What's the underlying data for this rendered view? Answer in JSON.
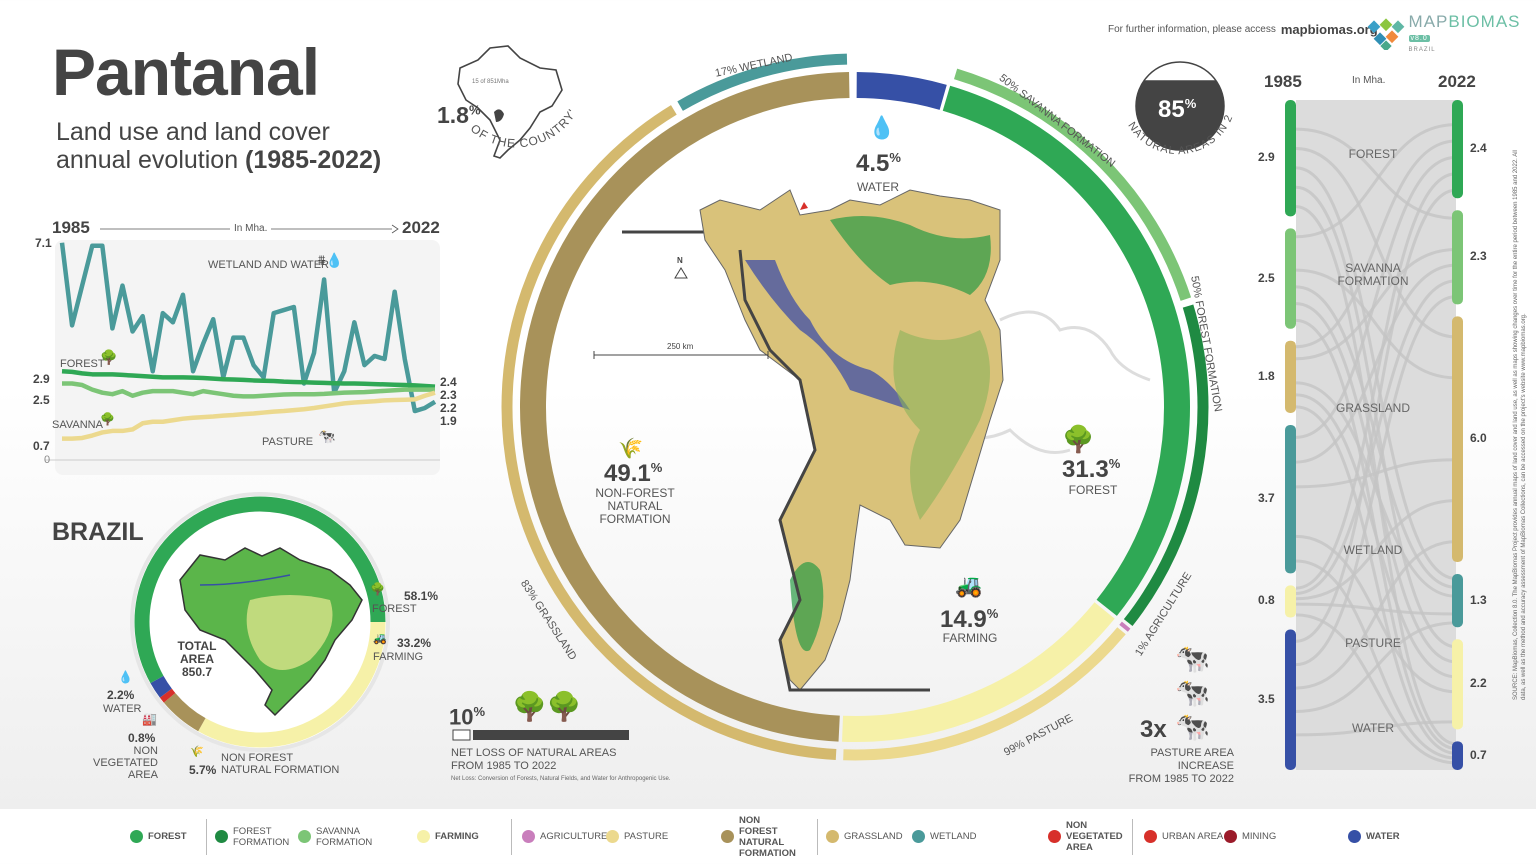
{
  "header": {
    "title": "Pantanal",
    "subtitle_line1": "Land use and land cover",
    "subtitle_line2": "annual evolution",
    "subtitle_years": "(1985-2022)",
    "info_text": "For further information, please access",
    "info_link": "mapbiomas.org",
    "logo_text_a": "MAP",
    "logo_text_b": "BIOMAS",
    "logo_country": "BRAZIL",
    "logo_version": "v8.0"
  },
  "country_share": {
    "value": "1.8",
    "unit": "%",
    "caption": "OF THE COUNTRY'S AREA",
    "map_note": "15 of 851Mha"
  },
  "natural_areas": {
    "value": "85",
    "unit": "%",
    "caption": "NATURAL AREAS IN 2022",
    "fill_fraction": 0.85
  },
  "line_chart": {
    "start_year": "1985",
    "end_year": "2022",
    "unit": "In Mha.",
    "labels": {
      "wetland": "WETLAND AND WATER",
      "forest": "FOREST",
      "savanna": "SAVANNA",
      "pasture": "PASTURE"
    },
    "start_values": {
      "wetland": "7.1",
      "forest": "2.9",
      "savanna": "2.5",
      "pasture": "0.7",
      "zero": "0"
    },
    "end_values": {
      "forest": "2.4",
      "savanna": "2.3",
      "pasture": "2.2",
      "wetland": "1.9"
    }
  },
  "chart_data": [
    {
      "type": "line",
      "xlabel": "",
      "ylabel": "In Mha.",
      "x_range": [
        1985,
        2022
      ],
      "ylim": [
        0,
        7.1
      ],
      "series": [
        {
          "name": "WETLAND AND WATER",
          "color": "#4a9a9a",
          "values": [
            7.1,
            4.4,
            5.7,
            7.0,
            7.0,
            4.3,
            5.7,
            4.2,
            4.7,
            2.9,
            4.8,
            4.5,
            5.4,
            2.9,
            3.8,
            4.6,
            2.7,
            4.0,
            4.0,
            3.1,
            2.7,
            4.8,
            4.9,
            5.0,
            2.5,
            3.5,
            5.9,
            2.2,
            2.9,
            4.5,
            3.1,
            3.4,
            3.3,
            5.5,
            3.3,
            1.6,
            1.7,
            1.9
          ]
        },
        {
          "name": "FOREST",
          "color": "#2fa855",
          "values": [
            2.9,
            2.88,
            2.83,
            2.8,
            2.8,
            2.8,
            2.78,
            2.76,
            2.74,
            2.72,
            2.7,
            2.7,
            2.7,
            2.69,
            2.68,
            2.66,
            2.64,
            2.63,
            2.62,
            2.6,
            2.59,
            2.58,
            2.56,
            2.55,
            2.54,
            2.53,
            2.52,
            2.51,
            2.5,
            2.5,
            2.49,
            2.48,
            2.47,
            2.46,
            2.45,
            2.44,
            2.42,
            2.4
          ]
        },
        {
          "name": "SAVANNA",
          "color": "#7cc576",
          "values": [
            2.5,
            2.5,
            2.45,
            2.3,
            2.2,
            2.15,
            2.25,
            2.1,
            2.2,
            2.25,
            2.25,
            2.25,
            2.2,
            2.15,
            2.25,
            2.2,
            2.15,
            2.1,
            2.08,
            2.08,
            2.1,
            2.12,
            2.14,
            2.15,
            2.15,
            2.15,
            2.16,
            2.18,
            2.2,
            2.21,
            2.22,
            2.24,
            2.26,
            2.28,
            2.3,
            2.3,
            2.3,
            2.3
          ]
        },
        {
          "name": "PASTURE",
          "color": "#ecd98e",
          "values": [
            0.7,
            0.7,
            0.72,
            0.8,
            0.9,
            0.95,
            0.95,
            1.0,
            1.2,
            1.25,
            1.25,
            1.3,
            1.35,
            1.38,
            1.4,
            1.42,
            1.45,
            1.47,
            1.5,
            1.52,
            1.55,
            1.58,
            1.6,
            1.63,
            1.66,
            1.7,
            1.75,
            1.8,
            1.85,
            1.88,
            1.9,
            1.92,
            1.95,
            1.96,
            1.97,
            1.98,
            2.1,
            2.2
          ]
        }
      ]
    },
    {
      "type": "pie",
      "title": "BRAZIL",
      "center_label": [
        "TOTAL",
        "AREA",
        "850.7"
      ],
      "slices": [
        {
          "key": "farming",
          "label": "FARMING",
          "value": 33.2,
          "color": "#f6f1a8"
        },
        {
          "key": "nonforest",
          "label": "NON FOREST NATURAL FORMATION",
          "value": 5.7,
          "color": "#a8925a"
        },
        {
          "key": "nonveg",
          "label": "NON VEGETATED AREA",
          "value": 0.8,
          "color": "#d7302a"
        },
        {
          "key": "water",
          "label": "WATER",
          "value": 2.2,
          "color": "#3650a6"
        },
        {
          "key": "forest",
          "label": "FOREST",
          "value": 58.1,
          "color": "#2fa855"
        }
      ]
    },
    {
      "type": "pie",
      "title": "Pantanal 2022",
      "slices": [
        {
          "key": "water",
          "label": "WATER",
          "value": 4.5,
          "color": "#3650a6",
          "sub": []
        },
        {
          "key": "forest",
          "label": "FOREST",
          "value": 31.3,
          "color": "#2fa855",
          "sub": [
            {
              "label": "SAVANNA FORMATION",
              "share": 50,
              "color": "#7cc576"
            },
            {
              "label": "FOREST FORMATION",
              "share": 50,
              "color": "#1f8a42"
            }
          ]
        },
        {
          "key": "farming",
          "label": "FARMING",
          "value": 14.9,
          "color": "#f6f1a8",
          "sub": [
            {
              "label": "AGRICULTURE",
              "share": 1,
              "color": "#c97ebc"
            },
            {
              "label": "PASTURE",
              "share": 99,
              "color": "#ecd98e"
            }
          ]
        },
        {
          "key": "nonforest",
          "label": "NON-FOREST NATURAL FORMATION",
          "value": 49.1,
          "color": "#a8925a",
          "sub": [
            {
              "label": "GRASSLAND",
              "share": 83,
              "color": "#d4b96e"
            },
            {
              "label": "WETLAND",
              "share": 17,
              "color": "#4a9a9a"
            }
          ]
        }
      ]
    },
    {
      "type": "sankey",
      "start_year": "1985",
      "end_year": "2022",
      "unit": "In Mha.",
      "nodes": [
        {
          "label": "FOREST",
          "v1985": 2.9,
          "v2022": 2.4,
          "color": "#2fa855"
        },
        {
          "label": "SAVANNA FORMATION",
          "v1985": 2.5,
          "v2022": 2.3,
          "color": "#7cc576"
        },
        {
          "label": "GRASSLAND",
          "v1985": 1.8,
          "v2022": 6.0,
          "color": "#d4b96e"
        },
        {
          "label": "WETLAND",
          "v1985": 3.7,
          "v2022": 1.3,
          "color": "#4a9a9a"
        },
        {
          "label": "PASTURE",
          "v1985": 0.8,
          "v2022": 2.2,
          "color": "#f6f1a8"
        },
        {
          "label": "WATER",
          "v1985": 3.5,
          "v2022": 0.7,
          "color": "#3650a6"
        }
      ]
    }
  ],
  "ring_labels": {
    "water": {
      "pct": "4.5",
      "label": "WATER"
    },
    "forest": {
      "pct": "31.3",
      "label": "FOREST"
    },
    "farming": {
      "pct": "14.9",
      "label": "FARMING"
    },
    "nonforest": {
      "pct": "49.1",
      "label_lines": [
        "NON-FOREST",
        "NATURAL",
        "FORMATION"
      ]
    },
    "outer": {
      "wetland": "17% WETLAND",
      "savanna": "50% SAVANNA FORMATION",
      "forest_formation": "50% FOREST FORMATION",
      "agriculture": "1% AGRICULTURE",
      "pasture": "99% PASTURE",
      "grassland": "83% GRASSLAND"
    },
    "north": "N",
    "scale": "250 km"
  },
  "brazil": {
    "title": "BRAZIL",
    "total": [
      "TOTAL",
      "AREA",
      "850.7"
    ],
    "forest": {
      "pct": "58.1%",
      "label": "FOREST"
    },
    "farming": {
      "pct": "33.2%",
      "label": "FARMING"
    },
    "water": {
      "pct": "2.2%",
      "label": "WATER"
    },
    "nonveg": {
      "pct": "0.8%",
      "label": [
        "NON VEGETATED",
        "AREA"
      ]
    },
    "nonforest": {
      "pct": "5.7%",
      "label": [
        "NON FOREST NATURAL",
        "FORMATION"
      ]
    }
  },
  "net_loss": {
    "value": "10",
    "unit": "%",
    "fraction": 0.1,
    "line1": "NET LOSS OF NATURAL AREAS",
    "line2": "FROM 1985 TO 2022",
    "note": "Net Loss: Conversion of Forests, Natural Fields, and Water for Anthropogenic Use."
  },
  "pasture_increase": {
    "value": "3x",
    "line1": "PASTURE AREA INCREASE",
    "line2": "FROM 1985 TO 2022"
  },
  "sankey_labels": {
    "start_values": [
      "2.9",
      "2.5",
      "1.8",
      "3.7",
      "0.8",
      "3.5"
    ],
    "end_values": [
      "2.4",
      "2.3",
      "6.0",
      "1.3",
      "2.2",
      "0.7"
    ],
    "names": [
      [
        "FOREST"
      ],
      [
        "SAVANNA",
        "FORMATION"
      ],
      [
        "GRASSLAND"
      ],
      [
        "WETLAND"
      ],
      [
        "PASTURE"
      ],
      [
        "WATER"
      ]
    ]
  },
  "source": "SOURCE: MapBiomas, Collection 8.0. The MapBiomas Project provides annual maps of land cover and land use, as well as maps showing changes over time for the entire period between 1985 and 2022. All data, as well as the method and accuracy assessment of MapBiomas Collections, can be accessed on the project's website www.mapbiomas.org.",
  "legend": [
    {
      "label": "FOREST",
      "bold": true,
      "color": "#2fa855"
    },
    {
      "label": "FOREST FORMATION",
      "color": "#1f8a42"
    },
    {
      "label": "SAVANNA FORMATION",
      "color": "#7cc576"
    },
    {
      "label": "FARMING",
      "bold": true,
      "color": "#f6f1a8"
    },
    {
      "label": "AGRICULTURE",
      "color": "#c97ebc"
    },
    {
      "label": "PASTURE",
      "color": "#ecd98e"
    },
    {
      "label": "NON FOREST NATURAL FORMATION",
      "bold": true,
      "color": "#a8925a"
    },
    {
      "label": "GRASSLAND",
      "color": "#d4b96e"
    },
    {
      "label": "WETLAND",
      "color": "#4a9a9a"
    },
    {
      "label": "NON VEGETATED AREA",
      "bold": true,
      "color": "#d7302a"
    },
    {
      "label": "URBAN AREA",
      "color": "#d7302a"
    },
    {
      "label": "MINING",
      "color": "#9b1b2a"
    },
    {
      "label": "WATER",
      "bold": true,
      "color": "#3650a6"
    }
  ]
}
